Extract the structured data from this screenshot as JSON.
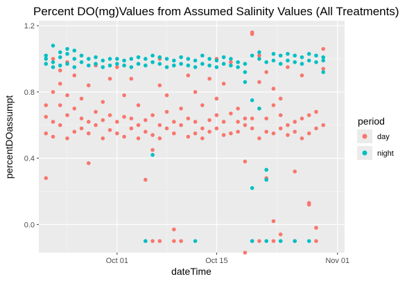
{
  "chart_data": {
    "type": "scatter",
    "title": "Percent DO(mg)Values from Assumed Salinity Values (All Treatments)",
    "xlabel": "dateTime",
    "ylabel": "percentDOassumpt",
    "x_ticks": [
      "Oct 01",
      "Oct 15",
      "Nov 01"
    ],
    "y_ticks": [
      0.0,
      0.4,
      0.8,
      1.2
    ],
    "xlim": [
      "2019-09-20",
      "2019-11-02"
    ],
    "ylim": [
      -0.17,
      1.23
    ],
    "legend": {
      "title": "period",
      "position": "right"
    },
    "grid": true,
    "series": [
      {
        "name": "day",
        "color": "#F8766D",
        "points": [
          [
            "2019-09-21",
            0.28
          ],
          [
            "2019-09-21",
            0.55
          ],
          [
            "2019-09-21",
            0.65
          ],
          [
            "2019-09-21",
            0.72
          ],
          [
            "2019-09-22",
            0.53
          ],
          [
            "2019-09-22",
            0.62
          ],
          [
            "2019-09-22",
            0.8
          ],
          [
            "2019-09-22",
            1.0
          ],
          [
            "2019-09-23",
            0.6
          ],
          [
            "2019-09-23",
            0.72
          ],
          [
            "2019-09-23",
            0.85
          ],
          [
            "2019-09-23",
            0.93
          ],
          [
            "2019-09-24",
            0.52
          ],
          [
            "2019-09-24",
            0.66
          ],
          [
            "2019-09-24",
            0.78
          ],
          [
            "2019-09-24",
            0.98
          ],
          [
            "2019-09-25",
            0.56
          ],
          [
            "2019-09-25",
            0.7
          ],
          [
            "2019-09-25",
            0.9
          ],
          [
            "2019-09-26",
            0.58
          ],
          [
            "2019-09-26",
            0.64
          ],
          [
            "2019-09-26",
            0.76
          ],
          [
            "2019-09-27",
            0.55
          ],
          [
            "2019-09-27",
            0.62
          ],
          [
            "2019-09-27",
            0.37
          ],
          [
            "2019-09-27",
            0.84
          ],
          [
            "2019-09-28",
            0.6
          ],
          [
            "2019-09-28",
            0.68
          ],
          [
            "2019-09-28",
            0.96
          ],
          [
            "2019-09-29",
            0.52
          ],
          [
            "2019-09-29",
            0.63
          ],
          [
            "2019-09-29",
            0.74
          ],
          [
            "2019-09-30",
            0.57
          ],
          [
            "2019-09-30",
            0.66
          ],
          [
            "2019-09-30",
            0.88
          ],
          [
            "2019-10-01",
            0.55
          ],
          [
            "2019-10-01",
            0.62
          ],
          [
            "2019-10-01",
            0.95
          ],
          [
            "2019-10-02",
            0.53
          ],
          [
            "2019-10-02",
            0.65
          ],
          [
            "2019-10-02",
            0.78
          ],
          [
            "2019-10-03",
            0.58
          ],
          [
            "2019-10-03",
            0.64
          ],
          [
            "2019-10-03",
            0.88
          ],
          [
            "2019-10-04",
            0.52
          ],
          [
            "2019-10-04",
            0.6
          ],
          [
            "2019-10-04",
            0.72
          ],
          [
            "2019-10-05",
            0.56
          ],
          [
            "2019-10-05",
            0.63
          ],
          [
            "2019-10-05",
            0.27
          ],
          [
            "2019-10-05",
            -0.1
          ],
          [
            "2019-10-06",
            0.54
          ],
          [
            "2019-10-06",
            0.66
          ],
          [
            "2019-10-06",
            0.45
          ],
          [
            "2019-10-06",
            -0.1
          ],
          [
            "2019-10-07",
            0.52
          ],
          [
            "2019-10-07",
            0.6
          ],
          [
            "2019-10-07",
            0.84
          ],
          [
            "2019-10-07",
            1.0
          ],
          [
            "2019-10-07",
            -0.1
          ],
          [
            "2019-10-08",
            0.58
          ],
          [
            "2019-10-08",
            0.68
          ],
          [
            "2019-10-08",
            0.78
          ],
          [
            "2019-10-09",
            0.55
          ],
          [
            "2019-10-09",
            0.62
          ],
          [
            "2019-10-09",
            -0.03
          ],
          [
            "2019-10-09",
            -0.1
          ],
          [
            "2019-10-10",
            0.6
          ],
          [
            "2019-10-10",
            0.7
          ],
          [
            "2019-10-10",
            -0.1
          ],
          [
            "2019-10-11",
            0.53
          ],
          [
            "2019-10-11",
            0.64
          ],
          [
            "2019-10-11",
            0.9
          ],
          [
            "2019-10-12",
            0.55
          ],
          [
            "2019-10-12",
            0.62
          ],
          [
            "2019-10-12",
            0.8
          ],
          [
            "2019-10-13",
            0.52
          ],
          [
            "2019-10-13",
            0.58
          ],
          [
            "2019-10-13",
            0.72
          ],
          [
            "2019-10-14",
            0.56
          ],
          [
            "2019-10-14",
            0.63
          ],
          [
            "2019-10-14",
            0.88
          ],
          [
            "2019-10-15",
            0.58
          ],
          [
            "2019-10-15",
            0.66
          ],
          [
            "2019-10-15",
            0.76
          ],
          [
            "2019-10-15",
            1.0
          ],
          [
            "2019-10-16",
            0.54
          ],
          [
            "2019-10-16",
            0.62
          ],
          [
            "2019-10-16",
            0.85
          ],
          [
            "2019-10-17",
            0.55
          ],
          [
            "2019-10-17",
            0.67
          ],
          [
            "2019-10-17",
            0.98
          ],
          [
            "2019-10-18",
            0.56
          ],
          [
            "2019-10-18",
            0.62
          ],
          [
            "2019-10-18",
            0.7
          ],
          [
            "2019-10-19",
            0.6
          ],
          [
            "2019-10-19",
            0.64
          ],
          [
            "2019-10-19",
            0.38
          ],
          [
            "2019-10-19",
            -0.17
          ],
          [
            "2019-10-20",
            0.58
          ],
          [
            "2019-10-20",
            0.64
          ],
          [
            "2019-10-20",
            1.16
          ],
          [
            "2019-10-20",
            1.15
          ],
          [
            "2019-10-20",
            -0.1
          ],
          [
            "2019-10-21",
            0.52
          ],
          [
            "2019-10-21",
            0.7
          ],
          [
            "2019-10-21",
            0.86
          ],
          [
            "2019-10-21",
            1.02
          ],
          [
            "2019-10-21",
            -0.1
          ],
          [
            "2019-10-22",
            0.56
          ],
          [
            "2019-10-22",
            0.64
          ],
          [
            "2019-10-22",
            0.92
          ],
          [
            "2019-10-22",
            0.28
          ],
          [
            "2019-10-23",
            0.55
          ],
          [
            "2019-10-23",
            0.72
          ],
          [
            "2019-10-23",
            0.82
          ],
          [
            "2019-10-23",
            0.02
          ],
          [
            "2019-10-23",
            -0.1
          ],
          [
            "2019-10-24",
            0.58
          ],
          [
            "2019-10-24",
            0.66
          ],
          [
            "2019-10-24",
            0.76
          ],
          [
            "2019-10-24",
            -0.06
          ],
          [
            "2019-10-25",
            0.54
          ],
          [
            "2019-10-25",
            0.6
          ],
          [
            "2019-10-25",
            0.95
          ],
          [
            "2019-10-26",
            0.56
          ],
          [
            "2019-10-26",
            0.62
          ],
          [
            "2019-10-26",
            0.32
          ],
          [
            "2019-10-26",
            -0.1
          ],
          [
            "2019-10-27",
            0.52
          ],
          [
            "2019-10-27",
            0.64
          ],
          [
            "2019-10-27",
            0.9
          ],
          [
            "2019-10-28",
            0.55
          ],
          [
            "2019-10-28",
            0.66
          ],
          [
            "2019-10-28",
            0.13
          ],
          [
            "2019-10-28",
            0.12
          ],
          [
            "2019-10-29",
            0.58
          ],
          [
            "2019-10-29",
            0.68
          ],
          [
            "2019-10-29",
            -0.02
          ],
          [
            "2019-10-29",
            -0.1
          ],
          [
            "2019-10-30",
            0.6
          ],
          [
            "2019-10-30",
            0.94
          ],
          [
            "2019-10-30",
            1.06
          ]
        ]
      },
      {
        "name": "night",
        "color": "#00BFC4",
        "points": [
          [
            "2019-09-21",
            0.97
          ],
          [
            "2019-09-21",
            1.0
          ],
          [
            "2019-09-21",
            1.02
          ],
          [
            "2019-09-22",
            0.95
          ],
          [
            "2019-09-22",
            0.98
          ],
          [
            "2019-09-22",
            1.08
          ],
          [
            "2019-09-23",
            0.96
          ],
          [
            "2019-09-23",
            1.01
          ],
          [
            "2019-09-23",
            1.04
          ],
          [
            "2019-09-24",
            0.97
          ],
          [
            "2019-09-24",
            1.03
          ],
          [
            "2019-09-24",
            1.06
          ],
          [
            "2019-09-25",
            0.95
          ],
          [
            "2019-09-25",
            1.0
          ],
          [
            "2019-09-25",
            1.05
          ],
          [
            "2019-09-26",
            0.98
          ],
          [
            "2019-09-26",
            1.02
          ],
          [
            "2019-09-27",
            0.96
          ],
          [
            "2019-09-27",
            1.0
          ],
          [
            "2019-09-28",
            0.97
          ],
          [
            "2019-09-28",
            1.01
          ],
          [
            "2019-09-29",
            0.95
          ],
          [
            "2019-09-29",
            0.99
          ],
          [
            "2019-09-30",
            0.96
          ],
          [
            "2019-09-30",
            1.0
          ],
          [
            "2019-10-01",
            0.97
          ],
          [
            "2019-10-01",
            1.0
          ],
          [
            "2019-10-02",
            0.96
          ],
          [
            "2019-10-02",
            0.99
          ],
          [
            "2019-10-03",
            0.95
          ],
          [
            "2019-10-03",
            1.0
          ],
          [
            "2019-10-04",
            0.97
          ],
          [
            "2019-10-04",
            1.01
          ],
          [
            "2019-10-05",
            0.96
          ],
          [
            "2019-10-05",
            1.0
          ],
          [
            "2019-10-05",
            -0.1
          ],
          [
            "2019-10-06",
            0.98
          ],
          [
            "2019-10-06",
            1.02
          ],
          [
            "2019-10-06",
            0.42
          ],
          [
            "2019-10-07",
            0.97
          ],
          [
            "2019-10-07",
            1.01
          ],
          [
            "2019-10-08",
            0.95
          ],
          [
            "2019-10-08",
            1.0
          ],
          [
            "2019-10-09",
            0.96
          ],
          [
            "2019-10-09",
            0.99
          ],
          [
            "2019-10-10",
            0.97
          ],
          [
            "2019-10-10",
            1.01
          ],
          [
            "2019-10-11",
            0.96
          ],
          [
            "2019-10-11",
            1.0
          ],
          [
            "2019-10-12",
            0.95
          ],
          [
            "2019-10-12",
            0.99
          ],
          [
            "2019-10-12",
            -0.1
          ],
          [
            "2019-10-13",
            0.97
          ],
          [
            "2019-10-13",
            1.02
          ],
          [
            "2019-10-14",
            0.96
          ],
          [
            "2019-10-14",
            1.0
          ],
          [
            "2019-10-15",
            0.95
          ],
          [
            "2019-10-15",
            0.99
          ],
          [
            "2019-10-16",
            0.97
          ],
          [
            "2019-10-16",
            1.01
          ],
          [
            "2019-10-17",
            0.96
          ],
          [
            "2019-10-17",
            1.0
          ],
          [
            "2019-10-18",
            0.95
          ],
          [
            "2019-10-18",
            0.98
          ],
          [
            "2019-10-19",
            0.97
          ],
          [
            "2019-10-19",
            0.92
          ],
          [
            "2019-10-19",
            0.86
          ],
          [
            "2019-10-20",
            0.22
          ],
          [
            "2019-10-20",
            0.75
          ],
          [
            "2019-10-20",
            1.02
          ],
          [
            "2019-10-20",
            -0.1
          ],
          [
            "2019-10-21",
            1.0
          ],
          [
            "2019-10-21",
            1.04
          ],
          [
            "2019-10-21",
            0.7
          ],
          [
            "2019-10-22",
            0.33
          ],
          [
            "2019-10-22",
            0.27
          ],
          [
            "2019-10-22",
            0.98
          ],
          [
            "2019-10-22",
            -0.1
          ],
          [
            "2019-10-23",
            0.99
          ],
          [
            "2019-10-23",
            1.03
          ],
          [
            "2019-10-24",
            0.97
          ],
          [
            "2019-10-24",
            1.02
          ],
          [
            "2019-10-24",
            -0.1
          ],
          [
            "2019-10-25",
            0.99
          ],
          [
            "2019-10-25",
            1.03
          ],
          [
            "2019-10-26",
            0.98
          ],
          [
            "2019-10-26",
            1.02
          ],
          [
            "2019-10-26",
            -0.1
          ],
          [
            "2019-10-27",
            0.97
          ],
          [
            "2019-10-27",
            1.01
          ],
          [
            "2019-10-28",
            0.99
          ],
          [
            "2019-10-28",
            1.03
          ],
          [
            "2019-10-28",
            -0.1
          ],
          [
            "2019-10-29",
            0.98
          ],
          [
            "2019-10-29",
            1.02
          ],
          [
            "2019-10-30",
            0.99
          ],
          [
            "2019-10-30",
            1.01
          ],
          [
            "2019-10-30",
            0.92
          ]
        ]
      }
    ]
  }
}
